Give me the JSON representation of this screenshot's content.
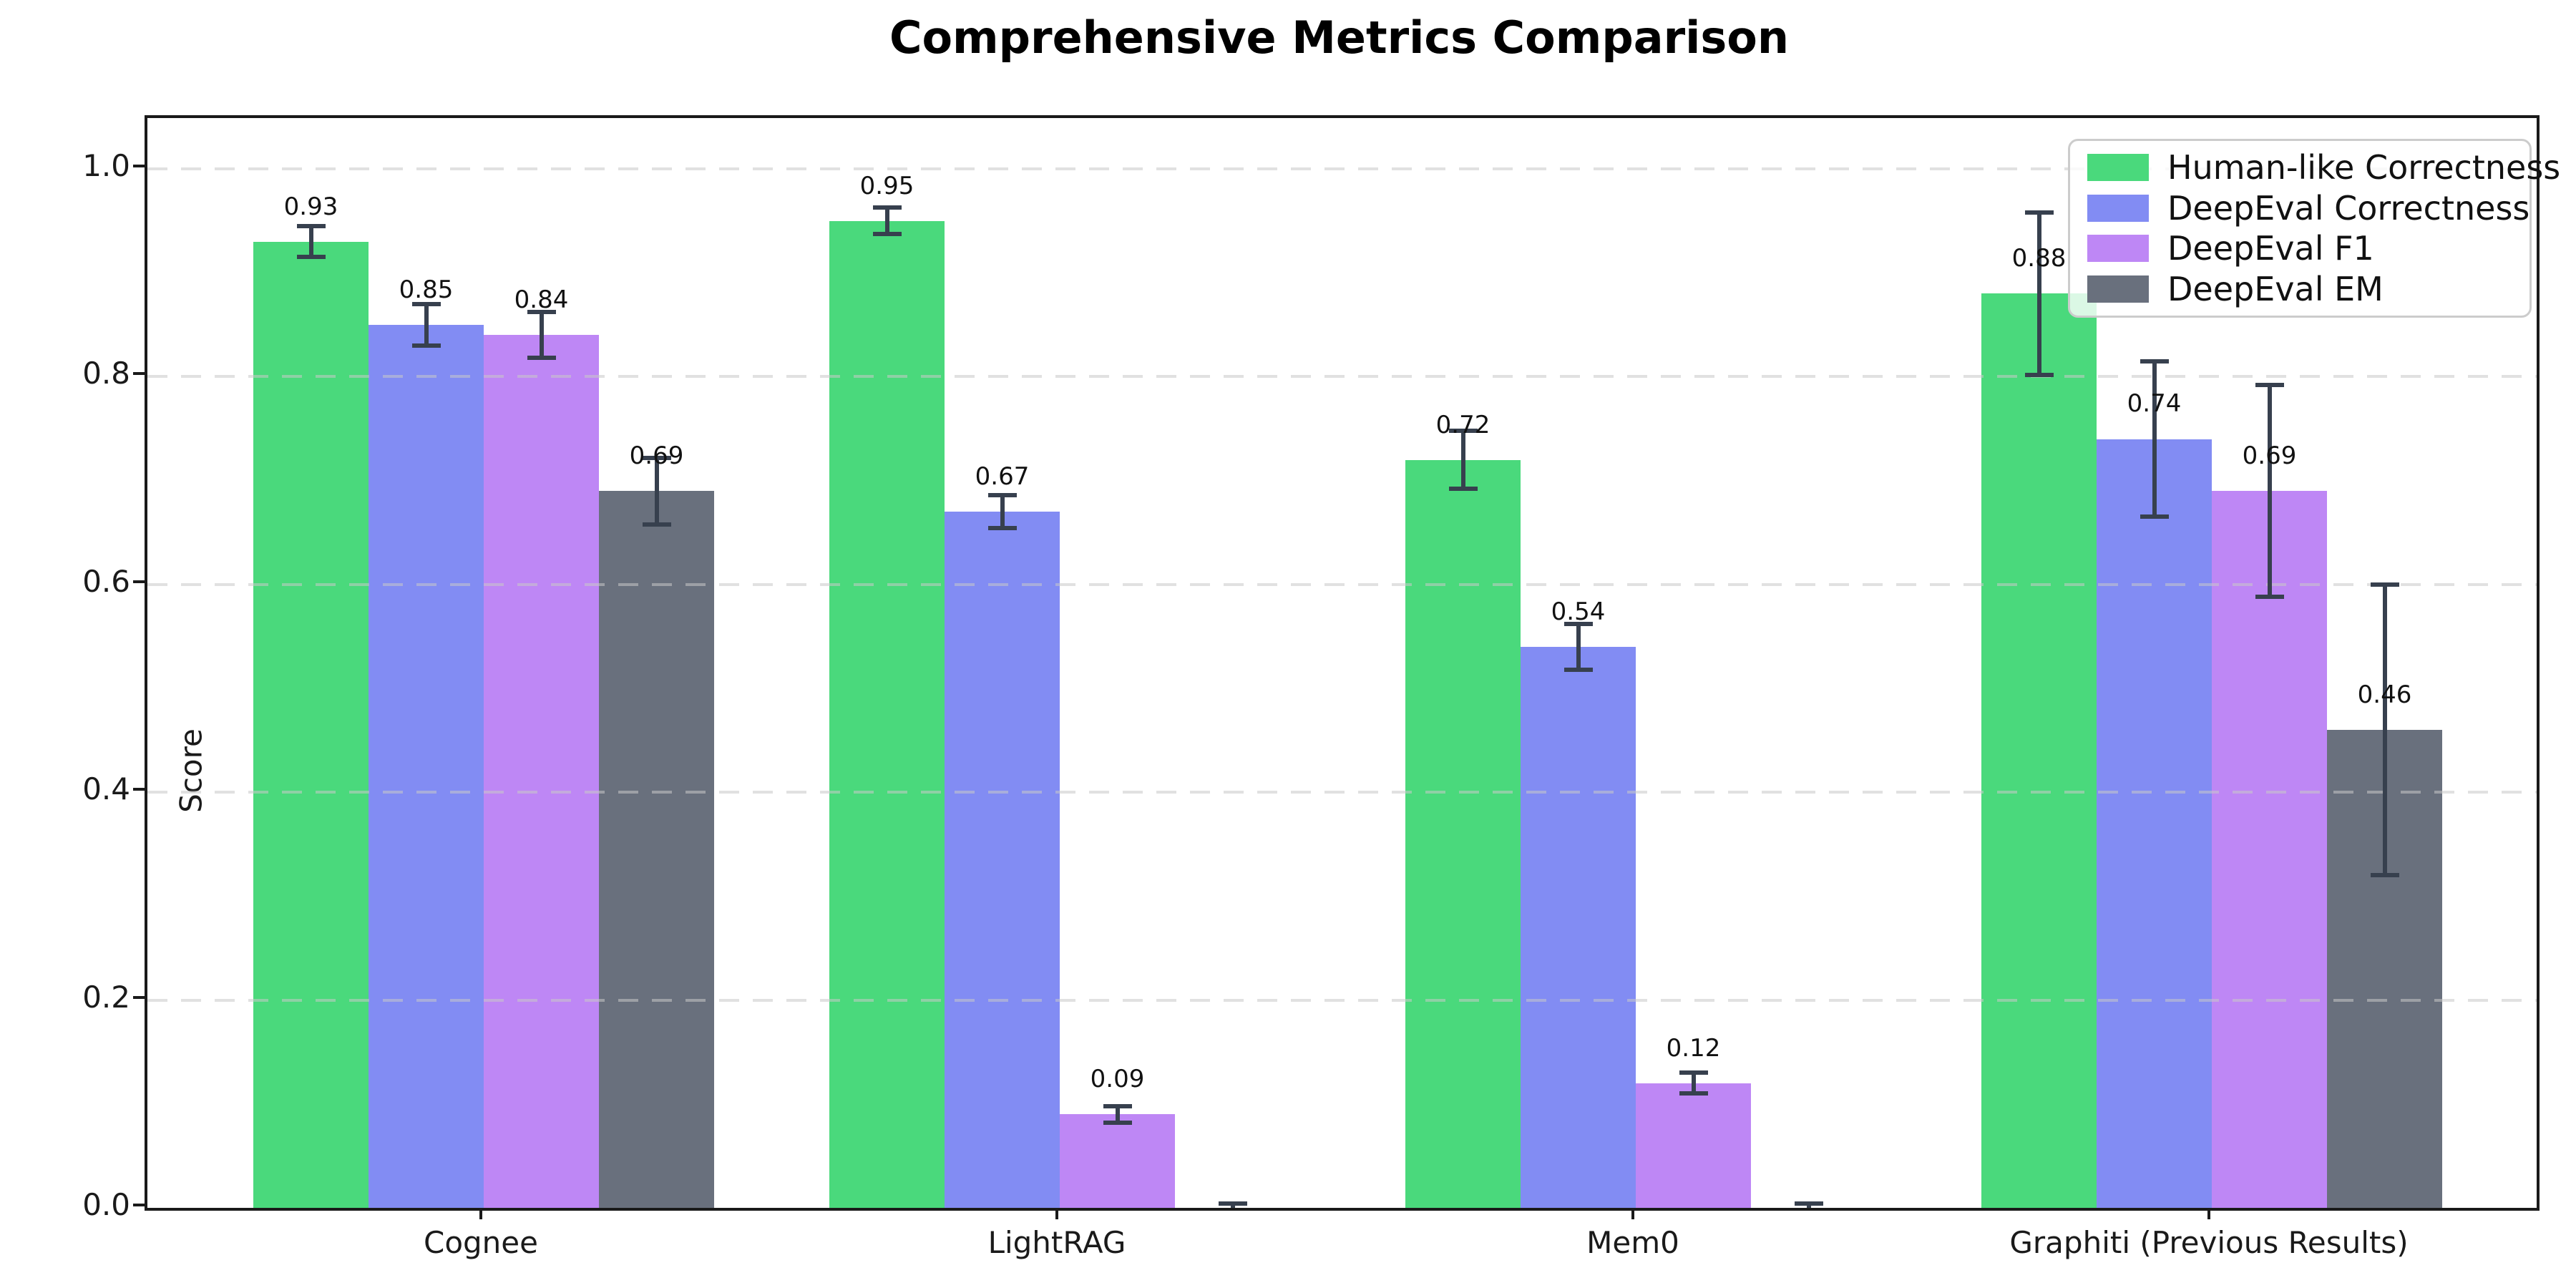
{
  "chart_data": {
    "type": "bar",
    "title": "Comprehensive Metrics Comparison",
    "ylabel": "Score",
    "xlabel": "",
    "ylim": [
      0.0,
      1.05
    ],
    "yticks": [
      0.0,
      0.2,
      0.4,
      0.6,
      0.8,
      1.0
    ],
    "ytick_labels": [
      "0.0",
      "0.2",
      "0.4",
      "0.6",
      "0.8",
      "1.0"
    ],
    "grid": "horizontal dashed",
    "legend_position": "upper right",
    "categories": [
      "Cognee",
      "LightRAG",
      "Mem0",
      "Graphiti (Previous Results)"
    ],
    "series": [
      {
        "name": "Human-like Correctness",
        "color": "#4ad97c",
        "values": [
          0.93,
          0.95,
          0.72,
          0.88
        ],
        "errors": [
          0.015,
          0.013,
          0.028,
          0.078
        ],
        "labels": [
          "0.93",
          "0.95",
          "0.72",
          "0.88"
        ]
      },
      {
        "name": "DeepEval Correctness",
        "color": "#828cf3",
        "values": [
          0.85,
          0.67,
          0.54,
          0.74
        ],
        "errors": [
          0.02,
          0.016,
          0.022,
          0.075
        ],
        "labels": [
          "0.85",
          "0.67",
          "0.54",
          "0.74"
        ]
      },
      {
        "name": "DeepEval F1",
        "color": "#be87f5",
        "values": [
          0.84,
          0.09,
          0.12,
          0.69
        ],
        "errors": [
          0.022,
          0.008,
          0.01,
          0.102
        ],
        "labels": [
          "0.84",
          "0.09",
          "0.12",
          "0.69"
        ]
      },
      {
        "name": "DeepEval EM",
        "color": "#69707d",
        "values": [
          0.69,
          0.0,
          0.0,
          0.46
        ],
        "errors": [
          0.032,
          0.004,
          0.004,
          0.14
        ],
        "labels": [
          "0.69",
          null,
          null,
          "0.46"
        ]
      }
    ],
    "error_bar_color": "#37404e"
  }
}
